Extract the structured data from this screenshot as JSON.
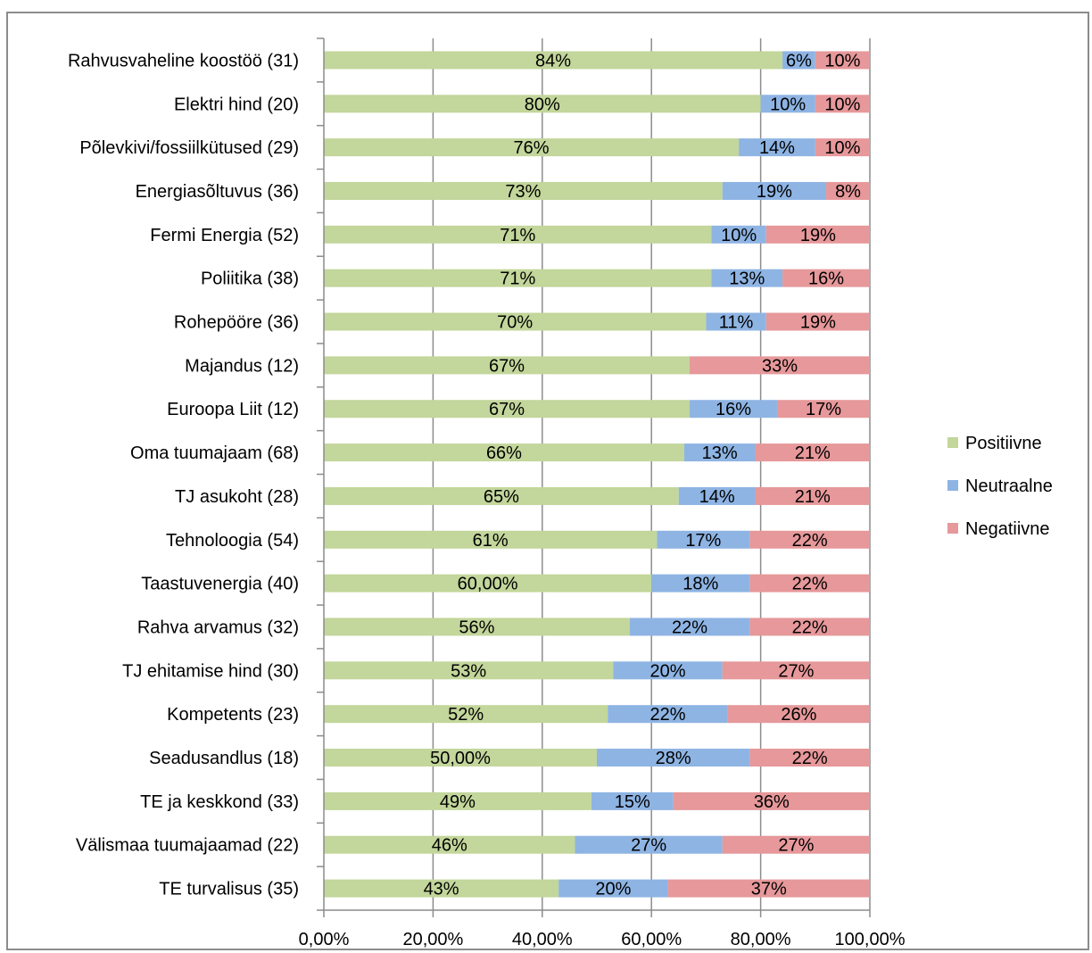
{
  "chart_data": {
    "type": "bar",
    "orientation": "horizontal",
    "stacked": true,
    "percent_stacked": true,
    "categories": [
      "Rahvusvaheline koostöö (31)",
      "Elektri hind (20)",
      "Põlevkivi/fossiilkütused (29)",
      "Energiasõltuvus (36)",
      "Fermi Energia (52)",
      "Poliitika (38)",
      "Rohepööre (36)",
      "Majandus (12)",
      "Euroopa Liit (12)",
      "Oma tuumajaam (68)",
      "TJ asukoht (28)",
      "Tehnoloogia (54)",
      "Taastuvenergia (40)",
      "Rahva arvamus (32)",
      "TJ ehitamise hind (30)",
      "Kompetents (23)",
      "Seadusandlus (18)",
      "TE ja keskkond (33)",
      "Välismaa tuumajaamad (22)",
      "TE turvalisus (35)"
    ],
    "series": [
      {
        "name": "Positiivne",
        "color": "#c3d69b",
        "values": [
          84,
          80,
          76,
          73,
          71,
          71,
          70,
          67,
          67,
          66,
          65,
          61,
          60,
          56,
          53,
          52,
          50,
          49,
          46,
          43
        ],
        "labels": [
          "84%",
          "80%",
          "76%",
          "73%",
          "71%",
          "71%",
          "70%",
          "67%",
          "67%",
          "66%",
          "65%",
          "61%",
          "60,00%",
          "56%",
          "53%",
          "52%",
          "50,00%",
          "49%",
          "46%",
          "43%"
        ]
      },
      {
        "name": "Neutraalne",
        "color": "#8eb4e3",
        "values": [
          6,
          10,
          14,
          19,
          10,
          13,
          11,
          0,
          16,
          13,
          14,
          17,
          18,
          22,
          20,
          22,
          28,
          15,
          27,
          20
        ],
        "labels": [
          "6%",
          "10%",
          "14%",
          "19%",
          "10%",
          "13%",
          "11%",
          "",
          "16%",
          "13%",
          "14%",
          "17%",
          "18%",
          "22%",
          "20%",
          "22%",
          "28%",
          "15%",
          "27%",
          "20%"
        ]
      },
      {
        "name": "Negatiivne",
        "color": "#e6989a",
        "values": [
          10,
          10,
          10,
          8,
          19,
          16,
          19,
          33,
          17,
          21,
          21,
          22,
          22,
          22,
          27,
          26,
          22,
          36,
          27,
          37
        ],
        "labels": [
          "10%",
          "10%",
          "10%",
          "8%",
          "19%",
          "16%",
          "19%",
          "33%",
          "17%",
          "21%",
          "21%",
          "22%",
          "22%",
          "22%",
          "27%",
          "26%",
          "22%",
          "36%",
          "27%",
          "37%"
        ]
      }
    ],
    "xlim": [
      0,
      100
    ],
    "xticks": [
      "0,00%",
      "20,00%",
      "40,00%",
      "60,00%",
      "80,00%",
      "100,00%"
    ],
    "grid": true,
    "legend_position": "right",
    "title": "",
    "xlabel": "",
    "ylabel": ""
  }
}
